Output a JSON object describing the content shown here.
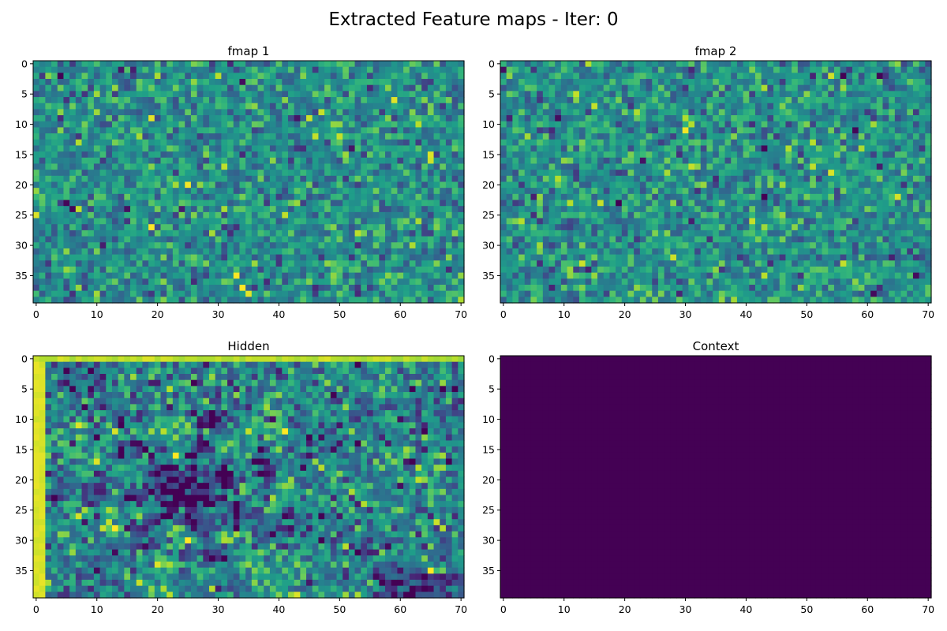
{
  "figure": {
    "title": "Extracted Feature maps - Iter: 0"
  },
  "chart_data": [
    {
      "type": "heatmap",
      "title": "fmap 1",
      "colormap": "viridis",
      "rows": 40,
      "cols": 71,
      "xlim": [
        0,
        70
      ],
      "ylim": [
        0,
        39
      ],
      "xticks": [
        0,
        10,
        20,
        30,
        40,
        50,
        60,
        70
      ],
      "yticks": [
        0,
        5,
        10,
        15,
        20,
        25,
        30,
        35
      ],
      "pattern": "noise",
      "value_range": [
        0.0,
        1.0
      ],
      "typical_level": 0.5,
      "spread": 0.17
    },
    {
      "type": "heatmap",
      "title": "fmap 2",
      "colormap": "viridis",
      "rows": 40,
      "cols": 71,
      "xlim": [
        0,
        70
      ],
      "ylim": [
        0,
        39
      ],
      "xticks": [
        0,
        10,
        20,
        30,
        40,
        50,
        60,
        70
      ],
      "yticks": [
        0,
        5,
        10,
        15,
        20,
        25,
        30,
        35
      ],
      "pattern": "noise",
      "value_range": [
        0.0,
        1.0
      ],
      "typical_level": 0.5,
      "spread": 0.17
    },
    {
      "type": "heatmap",
      "title": "Hidden",
      "colormap": "viridis",
      "rows": 40,
      "cols": 71,
      "xlim": [
        0,
        70
      ],
      "ylim": [
        0,
        39
      ],
      "xticks": [
        0,
        10,
        20,
        30,
        40,
        50,
        60,
        70
      ],
      "yticks": [
        0,
        5,
        10,
        15,
        20,
        25,
        30,
        35
      ],
      "pattern": "structured",
      "bright_borders": [
        "left",
        "top"
      ],
      "dark_center": [
        25,
        22
      ],
      "value_range": [
        0.0,
        1.0
      ]
    },
    {
      "type": "heatmap",
      "title": "Context",
      "colormap": "viridis",
      "rows": 40,
      "cols": 71,
      "xlim": [
        0,
        70
      ],
      "ylim": [
        0,
        39
      ],
      "xticks": [
        0,
        10,
        20,
        30,
        40,
        50,
        60,
        70
      ],
      "yticks": [
        0,
        5,
        10,
        15,
        20,
        25,
        30,
        35
      ],
      "pattern": "constant",
      "constant_value": 0.0,
      "value_range": [
        0.0,
        1.0
      ]
    }
  ]
}
